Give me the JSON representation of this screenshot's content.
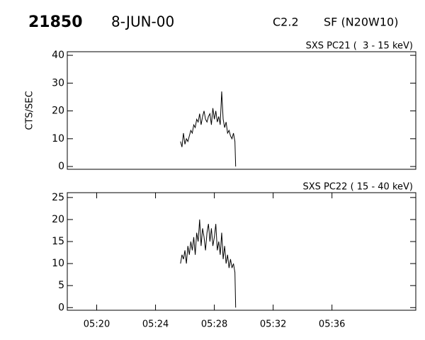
{
  "header": {
    "id": "21850",
    "date": "8-JUN-00",
    "class": "C2.2",
    "flare": "SF (N20W10)"
  },
  "chart_data": [
    {
      "type": "line",
      "title": "SXS PC21 (  3 - 15 keV)",
      "ylabel": "CTS/SEC",
      "color": "#000000",
      "x": [
        25.7,
        25.8,
        25.9,
        26.0,
        26.1,
        26.2,
        26.3,
        26.4,
        26.5,
        26.6,
        26.7,
        26.8,
        26.9,
        27.0,
        27.1,
        27.2,
        27.3,
        27.4,
        27.5,
        27.6,
        27.7,
        27.8,
        27.9,
        28.0,
        28.1,
        28.2,
        28.3,
        28.4,
        28.5,
        28.6,
        28.7,
        28.8,
        28.9,
        29.0,
        29.1,
        29.2,
        29.3,
        29.4,
        29.45
      ],
      "values": [
        9,
        7,
        12,
        8,
        10,
        9,
        11,
        13,
        12,
        15,
        14,
        17,
        16,
        19,
        15,
        18,
        20,
        17,
        16,
        18,
        19,
        15,
        21,
        17,
        20,
        16,
        18,
        15,
        27,
        17,
        14,
        16,
        12,
        13,
        11,
        10,
        12,
        9,
        0
      ],
      "xlim": [
        18,
        41.7
      ],
      "ylim": [
        -1,
        41.3
      ],
      "yticks": [
        0,
        10,
        20,
        30,
        40
      ]
    },
    {
      "type": "line",
      "title": "SXS PC22 ( 15 - 40 keV)",
      "color": "#000000",
      "x": [
        25.7,
        25.8,
        25.9,
        26.0,
        26.1,
        26.2,
        26.3,
        26.4,
        26.5,
        26.6,
        26.7,
        26.8,
        26.9,
        27.0,
        27.1,
        27.2,
        27.3,
        27.4,
        27.5,
        27.6,
        27.7,
        27.8,
        27.9,
        28.0,
        28.1,
        28.2,
        28.3,
        28.4,
        28.5,
        28.6,
        28.7,
        28.8,
        28.9,
        29.0,
        29.1,
        29.2,
        29.3,
        29.4,
        29.45
      ],
      "values": [
        10,
        12,
        11,
        13,
        10,
        14,
        12,
        15,
        13,
        16,
        12,
        17,
        15,
        20,
        14,
        18,
        16,
        13,
        17,
        19,
        15,
        18,
        14,
        16,
        19,
        13,
        15,
        12,
        17,
        11,
        14,
        10,
        12,
        9,
        11,
        9,
        10,
        8,
        0
      ],
      "xlim": [
        18,
        41.7
      ],
      "ylim": [
        -0.6,
        26.1
      ],
      "yticks": [
        0,
        5,
        10,
        15,
        20,
        25
      ],
      "xticks": [
        {
          "value": 20,
          "label": "05:20"
        },
        {
          "value": 24,
          "label": "05:24"
        },
        {
          "value": 28,
          "label": "05:28"
        },
        {
          "value": 32,
          "label": "05:32"
        },
        {
          "value": 36,
          "label": "05:36"
        }
      ]
    }
  ]
}
